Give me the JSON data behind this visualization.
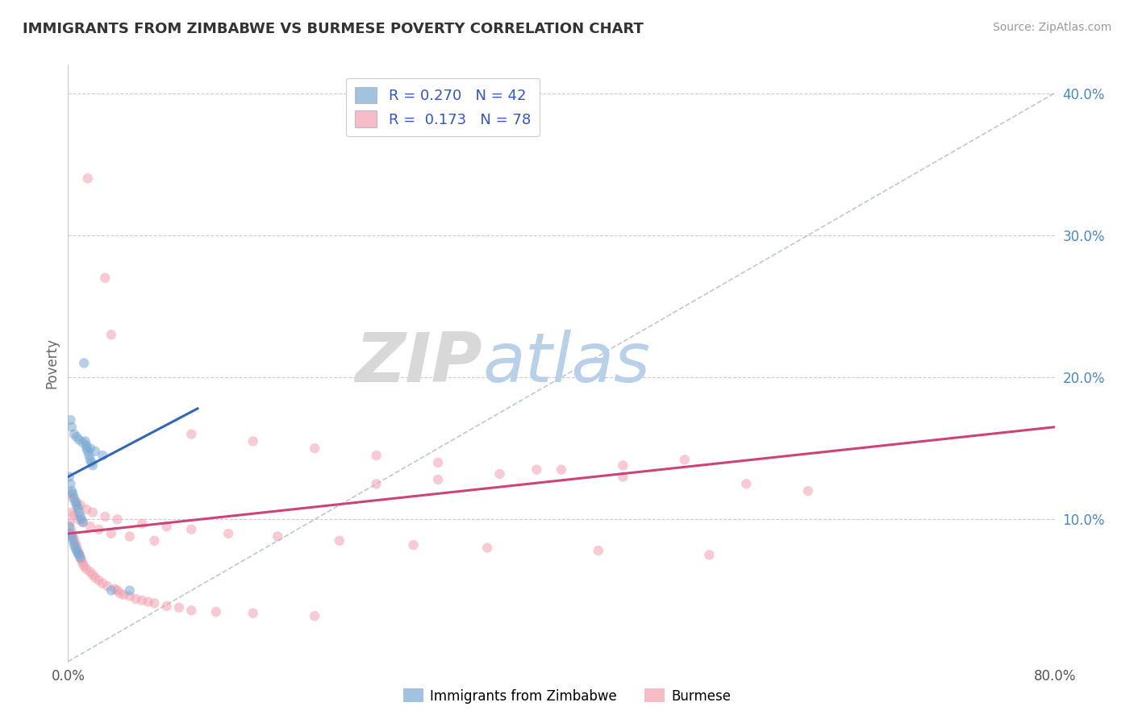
{
  "title": "IMMIGRANTS FROM ZIMBABWE VS BURMESE POVERTY CORRELATION CHART",
  "source": "Source: ZipAtlas.com",
  "ylabel": "Poverty",
  "xlim": [
    0,
    0.8
  ],
  "ylim": [
    0,
    0.42
  ],
  "yticks": [
    0.1,
    0.2,
    0.3,
    0.4
  ],
  "ytick_labels": [
    "10.0%",
    "20.0%",
    "30.0%",
    "40.0%"
  ],
  "grid_color": "#cccccc",
  "background_color": "#ffffff",
  "series1_color": "#7aaad4",
  "series2_color": "#f4a0b0",
  "series1_label": "Immigrants from Zimbabwe",
  "series2_label": "Burmese",
  "blue_scatter_x": [
    0.001,
    0.001,
    0.002,
    0.002,
    0.003,
    0.003,
    0.004,
    0.004,
    0.005,
    0.005,
    0.006,
    0.006,
    0.007,
    0.007,
    0.008,
    0.008,
    0.009,
    0.009,
    0.01,
    0.01,
    0.011,
    0.012,
    0.013,
    0.014,
    0.015,
    0.016,
    0.017,
    0.018,
    0.019,
    0.02,
    0.002,
    0.003,
    0.005,
    0.007,
    0.009,
    0.012,
    0.015,
    0.018,
    0.022,
    0.028,
    0.035,
    0.05
  ],
  "blue_scatter_y": [
    0.13,
    0.095,
    0.125,
    0.09,
    0.12,
    0.088,
    0.118,
    0.085,
    0.115,
    0.082,
    0.112,
    0.08,
    0.11,
    0.078,
    0.108,
    0.076,
    0.105,
    0.075,
    0.102,
    0.073,
    0.1,
    0.098,
    0.21,
    0.155,
    0.15,
    0.148,
    0.145,
    0.142,
    0.14,
    0.138,
    0.17,
    0.165,
    0.16,
    0.158,
    0.156,
    0.154,
    0.152,
    0.15,
    0.148,
    0.145,
    0.05,
    0.05
  ],
  "pink_scatter_x": [
    0.001,
    0.002,
    0.003,
    0.004,
    0.005,
    0.006,
    0.007,
    0.008,
    0.009,
    0.01,
    0.011,
    0.012,
    0.013,
    0.015,
    0.016,
    0.018,
    0.02,
    0.022,
    0.025,
    0.028,
    0.03,
    0.032,
    0.035,
    0.038,
    0.04,
    0.042,
    0.045,
    0.05,
    0.055,
    0.06,
    0.065,
    0.07,
    0.08,
    0.09,
    0.1,
    0.12,
    0.15,
    0.2,
    0.25,
    0.3,
    0.35,
    0.4,
    0.45,
    0.5,
    0.003,
    0.005,
    0.008,
    0.012,
    0.018,
    0.025,
    0.035,
    0.05,
    0.07,
    0.002,
    0.004,
    0.007,
    0.01,
    0.015,
    0.02,
    0.03,
    0.04,
    0.06,
    0.08,
    0.1,
    0.13,
    0.17,
    0.22,
    0.28,
    0.34,
    0.43,
    0.52,
    0.1,
    0.15,
    0.2,
    0.25,
    0.3,
    0.38,
    0.45,
    0.55,
    0.6
  ],
  "pink_scatter_y": [
    0.098,
    0.094,
    0.091,
    0.088,
    0.086,
    0.083,
    0.081,
    0.078,
    0.076,
    0.073,
    0.071,
    0.069,
    0.067,
    0.065,
    0.34,
    0.063,
    0.061,
    0.059,
    0.057,
    0.055,
    0.27,
    0.053,
    0.23,
    0.051,
    0.05,
    0.048,
    0.047,
    0.046,
    0.044,
    0.043,
    0.042,
    0.041,
    0.039,
    0.038,
    0.036,
    0.035,
    0.034,
    0.032,
    0.125,
    0.128,
    0.132,
    0.135,
    0.138,
    0.142,
    0.105,
    0.103,
    0.1,
    0.098,
    0.095,
    0.093,
    0.09,
    0.088,
    0.085,
    0.118,
    0.115,
    0.112,
    0.11,
    0.107,
    0.105,
    0.102,
    0.1,
    0.097,
    0.095,
    0.093,
    0.09,
    0.088,
    0.085,
    0.082,
    0.08,
    0.078,
    0.075,
    0.16,
    0.155,
    0.15,
    0.145,
    0.14,
    0.135,
    0.13,
    0.125,
    0.12
  ],
  "blue_line_x": [
    0.0,
    0.105
  ],
  "blue_line_y": [
    0.13,
    0.178
  ],
  "pink_line_x": [
    0.0,
    0.8
  ],
  "pink_line_y": [
    0.09,
    0.165
  ],
  "diag_line_x": [
    0.0,
    0.8
  ],
  "diag_line_y": [
    0.0,
    0.4
  ]
}
